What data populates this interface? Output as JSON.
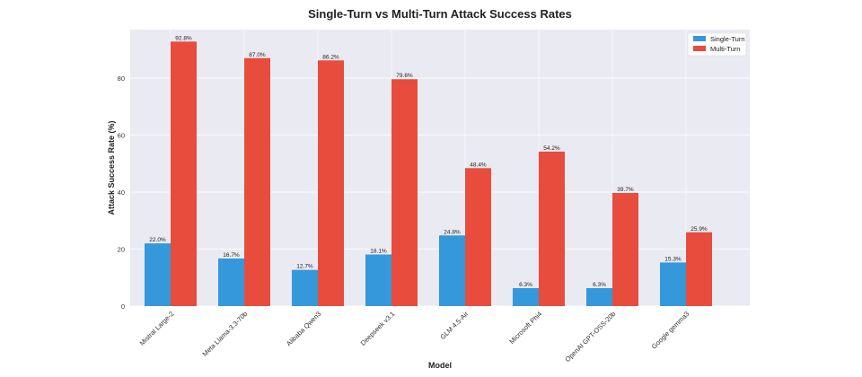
{
  "chart_data": {
    "type": "bar",
    "title": "Single-Turn vs Multi-Turn Attack Success Rates",
    "xlabel": "Model",
    "ylabel": "Attack Success Rate (%)",
    "ylim": [
      0,
      97
    ],
    "yticks": [
      0,
      20,
      40,
      60,
      80
    ],
    "grid": true,
    "legend_position": "top-right",
    "categories": [
      "Mistral Large-2",
      "Meta Llama-3.3-70b",
      "Alibaba Qwen3",
      "Deepseek v3.1",
      "GLM 4.5-Air",
      "Microsoft Phi4",
      "OpenAI GPT-OSS-20b",
      "Google gemma3"
    ],
    "series": [
      {
        "name": "Single-Turn",
        "color": "#3498db",
        "values": [
          22.0,
          16.7,
          12.7,
          18.1,
          24.8,
          6.3,
          6.3,
          15.3
        ],
        "labels": [
          "22.0%",
          "16.7%",
          "12.7%",
          "18.1%",
          "24.8%",
          "6.3%",
          "6.3%",
          "15.3%"
        ]
      },
      {
        "name": "Multi-Turn",
        "color": "#e74c3c",
        "values": [
          92.8,
          87.0,
          86.2,
          79.6,
          48.4,
          54.2,
          39.7,
          25.9
        ],
        "labels": [
          "92.8%",
          "87.0%",
          "86.2%",
          "79.6%",
          "48.4%",
          "54.2%",
          "39.7%",
          "25.9%"
        ]
      }
    ]
  }
}
